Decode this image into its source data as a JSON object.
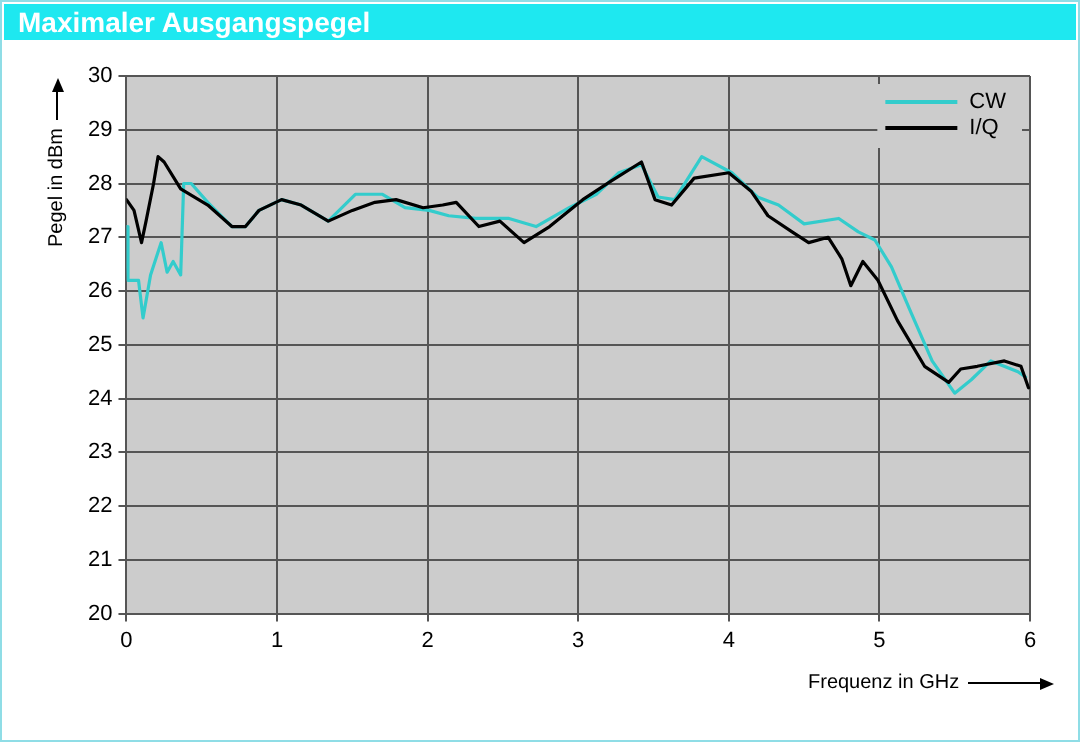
{
  "chart_data": {
    "type": "line",
    "title": "Maximaler Ausgangspegel",
    "xlabel": "Frequenz in GHz",
    "ylabel": "Pegel in dBm",
    "xlim": [
      0,
      6
    ],
    "xticks": [
      0,
      1,
      2,
      3,
      4,
      5,
      6
    ],
    "ylim": [
      20,
      30
    ],
    "yticks": [
      20,
      21,
      22,
      23,
      24,
      25,
      26,
      27,
      28,
      29,
      30
    ],
    "grid": true,
    "legend": "top right",
    "marker": "none",
    "line_style": "solid",
    "series": [
      {
        "name": "CW",
        "color": "#33cccc",
        "x": [
          0,
          0.01,
          0.08,
          0.11,
          0.16,
          0.23,
          0.27,
          0.31,
          0.36,
          0.38,
          0.43,
          0.54,
          0.7,
          0.79,
          0.88,
          1.03,
          1.16,
          1.34,
          1.52,
          1.7,
          1.85,
          2.01,
          2.14,
          2.32,
          2.54,
          2.72,
          2.94,
          3.12,
          3.27,
          3.42,
          3.53,
          3.64,
          3.82,
          4.02,
          4.19,
          4.33,
          4.5,
          4.73,
          4.86,
          4.97,
          5.08,
          5.21,
          5.35,
          5.5,
          5.61,
          5.74,
          5.92,
          5.97
        ],
        "values": [
          27.2,
          26.2,
          26.2,
          25.5,
          26.3,
          26.9,
          26.35,
          26.55,
          26.3,
          28.0,
          28.0,
          27.65,
          27.2,
          27.2,
          27.5,
          27.7,
          27.6,
          27.3,
          27.8,
          27.8,
          27.55,
          27.5,
          27.4,
          27.35,
          27.35,
          27.2,
          27.55,
          27.8,
          28.2,
          28.35,
          27.75,
          27.7,
          28.5,
          28.2,
          27.75,
          27.6,
          27.25,
          27.35,
          27.1,
          26.95,
          26.45,
          25.6,
          24.7,
          24.1,
          24.35,
          24.7,
          24.5,
          24.4
        ]
      },
      {
        "name": "I/Q",
        "color": "#000000",
        "x": [
          0,
          0.05,
          0.1,
          0.13,
          0.18,
          0.21,
          0.25,
          0.36,
          0.54,
          0.7,
          0.79,
          0.88,
          1.03,
          1.16,
          1.34,
          1.5,
          1.65,
          1.79,
          1.97,
          2.1,
          2.19,
          2.34,
          2.48,
          2.64,
          2.81,
          3.03,
          3.22,
          3.42,
          3.51,
          3.62,
          3.77,
          4.0,
          4.15,
          4.26,
          4.42,
          4.53,
          4.66,
          4.75,
          4.81,
          4.89,
          4.99,
          5.12,
          5.3,
          5.46,
          5.54,
          5.65,
          5.83,
          5.94,
          5.99
        ],
        "values": [
          27.7,
          27.5,
          26.9,
          27.3,
          28.0,
          28.5,
          28.4,
          27.9,
          27.6,
          27.2,
          27.2,
          27.5,
          27.7,
          27.6,
          27.3,
          27.5,
          27.65,
          27.7,
          27.55,
          27.6,
          27.65,
          27.2,
          27.3,
          26.9,
          27.2,
          27.7,
          28.05,
          28.4,
          27.7,
          27.6,
          28.1,
          28.2,
          27.85,
          27.4,
          27.1,
          26.9,
          27.0,
          26.6,
          26.1,
          26.55,
          26.2,
          25.45,
          24.6,
          24.3,
          24.55,
          24.6,
          24.7,
          24.6,
          24.2
        ]
      }
    ]
  }
}
